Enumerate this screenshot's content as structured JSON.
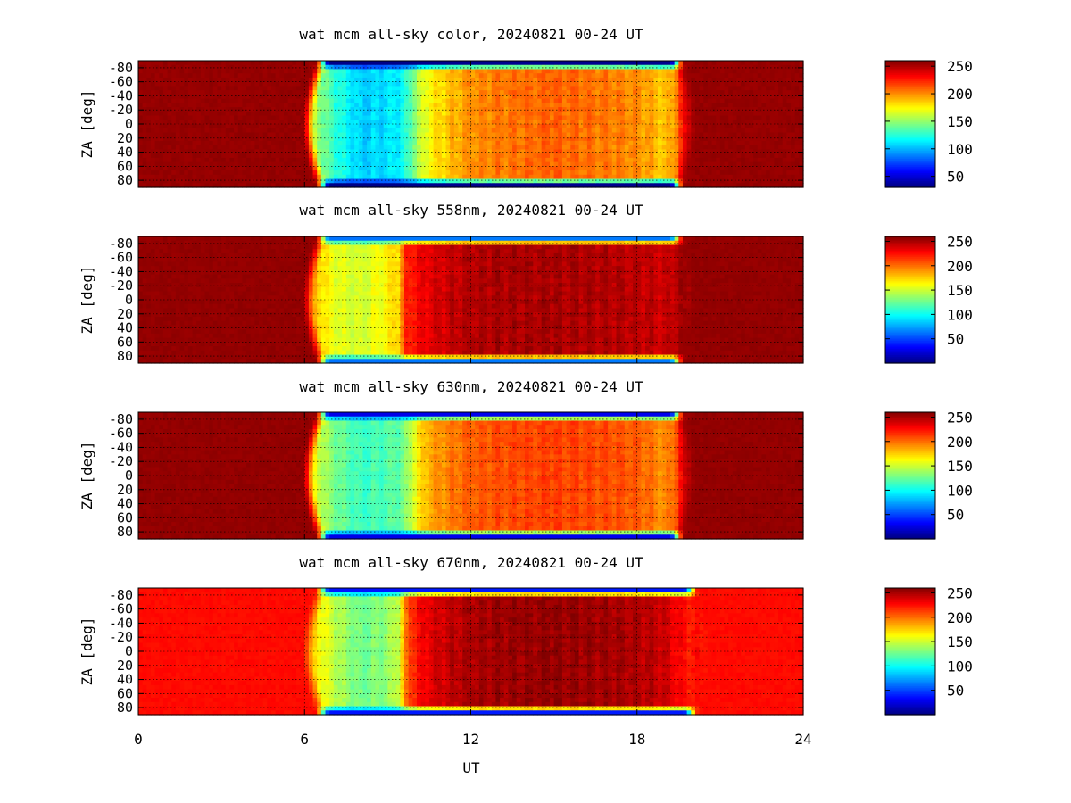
{
  "chart_data": [
    {
      "type": "heatmap",
      "title": "wat mcm all-sky color, 20240821 00-24 UT",
      "xlabel": "UT",
      "ylabel": "ZA [deg]",
      "xlim": [
        0,
        24
      ],
      "ylim": [
        -90,
        90
      ],
      "x_ticks": [
        0,
        6,
        12,
        18,
        24
      ],
      "y_ticks": [
        -80,
        -60,
        -40,
        -20,
        0,
        20,
        40,
        60,
        80
      ],
      "y_tick_labels": [
        "-80",
        "-60",
        "-40",
        "-20",
        "0",
        "20",
        "40",
        "60",
        "80"
      ],
      "colorbar_ticks": [
        50,
        100,
        150,
        200,
        250
      ],
      "colorbar_range": [
        30,
        260
      ],
      "grid": true,
      "colormap": "jet",
      "night_value": 255,
      "edge_value": 30,
      "dawn_ut": 6.1,
      "dusk_ut": 20.0,
      "day_profile_ut": [
        6.5,
        7.0,
        8.0,
        9.0,
        9.6,
        10.0,
        10.5,
        12.0,
        15.0,
        18.0,
        19.0,
        19.4,
        19.8
      ],
      "day_profile_value": [
        150,
        130,
        105,
        110,
        118,
        150,
        175,
        200,
        210,
        200,
        185,
        200,
        240
      ]
    },
    {
      "type": "heatmap",
      "title": "wat mcm all-sky 558nm, 20240821 00-24 UT",
      "xlabel": "UT",
      "ylabel": "ZA [deg]",
      "xlim": [
        0,
        24
      ],
      "ylim": [
        -90,
        90
      ],
      "x_ticks": [
        0,
        6,
        12,
        18,
        24
      ],
      "y_ticks": [
        -80,
        -60,
        -40,
        -20,
        0,
        20,
        40,
        60,
        80
      ],
      "y_tick_labels": [
        "-80",
        "-60",
        "-40",
        "-20",
        "0",
        "20",
        "40",
        "60",
        "80"
      ],
      "colorbar_ticks": [
        50,
        100,
        150,
        200,
        250
      ],
      "colorbar_range": [
        0,
        260
      ],
      "grid": true,
      "colormap": "jet",
      "night_value": 255,
      "edge_value": 60,
      "dawn_ut": 6.1,
      "dusk_ut": 20.0,
      "day_profile_ut": [
        6.5,
        7.0,
        8.0,
        9.0,
        9.4,
        9.7,
        10.5,
        12.0,
        15.0,
        18.0,
        19.0,
        19.8
      ],
      "day_profile_value": [
        175,
        158,
        150,
        165,
        175,
        220,
        235,
        248,
        250,
        245,
        240,
        252
      ]
    },
    {
      "type": "heatmap",
      "title": "wat mcm all-sky 630nm, 20240821 00-24 UT",
      "xlabel": "UT",
      "ylabel": "ZA [deg]",
      "xlim": [
        0,
        24
      ],
      "ylim": [
        -90,
        90
      ],
      "x_ticks": [
        0,
        6,
        12,
        18,
        24
      ],
      "y_ticks": [
        -80,
        -60,
        -40,
        -20,
        0,
        20,
        40,
        60,
        80
      ],
      "y_tick_labels": [
        "-80",
        "-60",
        "-40",
        "-20",
        "0",
        "20",
        "40",
        "60",
        "80"
      ],
      "colorbar_ticks": [
        50,
        100,
        150,
        200,
        250
      ],
      "colorbar_range": [
        0,
        260
      ],
      "grid": true,
      "colormap": "jet",
      "night_value": 255,
      "edge_value": 25,
      "dawn_ut": 6.1,
      "dusk_ut": 20.0,
      "day_profile_ut": [
        6.5,
        7.0,
        8.0,
        9.0,
        9.6,
        10.0,
        10.5,
        12.0,
        15.0,
        18.0,
        19.0,
        19.4,
        19.8
      ],
      "day_profile_value": [
        150,
        130,
        112,
        118,
        125,
        160,
        185,
        205,
        212,
        205,
        190,
        205,
        245
      ]
    },
    {
      "type": "heatmap",
      "title": "wat mcm all-sky 670nm, 20240821 00-24 UT",
      "xlabel": "UT",
      "ylabel": "ZA [deg]",
      "xlim": [
        0,
        24
      ],
      "ylim": [
        -90,
        90
      ],
      "x_ticks": [
        0,
        6,
        12,
        18,
        24
      ],
      "y_ticks": [
        -80,
        -60,
        -40,
        -20,
        0,
        20,
        40,
        60,
        80
      ],
      "y_tick_labels": [
        "-80",
        "-60",
        "-40",
        "-20",
        "0",
        "20",
        "40",
        "60",
        "80"
      ],
      "colorbar_ticks": [
        50,
        100,
        150,
        200,
        250
      ],
      "colorbar_range": [
        0,
        260
      ],
      "grid": true,
      "colormap": "jet",
      "night_value": 225,
      "edge_value": 35,
      "dawn_ut": 6.1,
      "dusk_ut": 20.5,
      "day_profile_ut": [
        6.5,
        7.0,
        8.0,
        9.0,
        9.4,
        9.8,
        10.5,
        12.0,
        15.0,
        18.0,
        19.0,
        19.6,
        20.2
      ],
      "day_profile_value": [
        165,
        148,
        125,
        135,
        150,
        215,
        235,
        250,
        255,
        248,
        240,
        225,
        222
      ]
    }
  ]
}
